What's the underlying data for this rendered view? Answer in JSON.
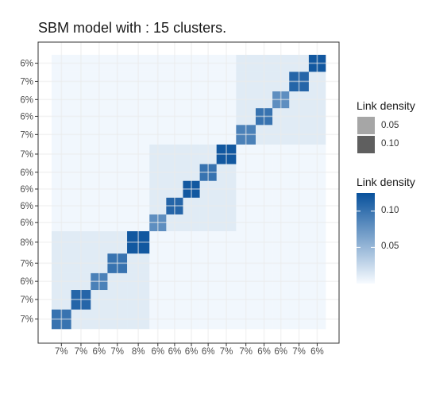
{
  "title": "SBM model with : 15 clusters.",
  "chart_data": {
    "type": "heatmap",
    "title": "SBM model with : 15 clusters.",
    "row_labels_top_to_bottom": [
      "6%",
      "7%",
      "6%",
      "6%",
      "7%",
      "7%",
      "6%",
      "6%",
      "6%",
      "6%",
      "8%",
      "7%",
      "6%",
      "7%",
      "7%"
    ],
    "col_labels_left_to_right": [
      "7%",
      "7%",
      "6%",
      "7%",
      "8%",
      "6%",
      "6%",
      "6%",
      "6%",
      "7%",
      "7%",
      "6%",
      "6%",
      "7%",
      "6%"
    ],
    "cluster_proportions": [
      0.07,
      0.07,
      0.06,
      0.07,
      0.08,
      0.06,
      0.06,
      0.06,
      0.06,
      0.07,
      0.07,
      0.06,
      0.06,
      0.07,
      0.06
    ],
    "diagonal_link_density": [
      0.1,
      0.11,
      0.09,
      0.1,
      0.12,
      0.08,
      0.11,
      0.12,
      0.1,
      0.12,
      0.09,
      0.1,
      0.08,
      0.11,
      0.12
    ],
    "within_group_link_density": 0.012,
    "background_link_density": 0.003,
    "groups_of_clusters": [
      [
        1,
        5
      ],
      [
        6,
        10
      ],
      [
        11,
        15
      ]
    ],
    "grid": true,
    "legend_size": {
      "title": "Link density",
      "entries": [
        {
          "label": "0.05",
          "color": "#a6a6a6"
        },
        {
          "label": "0.10",
          "color": "#5f5f5f"
        }
      ]
    },
    "legend_color": {
      "title": "Link density",
      "ticks": [
        "0.10",
        "0.05"
      ],
      "tick_values": [
        0.1,
        0.05
      ],
      "range": [
        0,
        0.125
      ],
      "low_color": "#f7fbff",
      "high_color": "#08519c"
    },
    "legend_placement": "right"
  },
  "colors": {
    "panel_border": "#333333",
    "grid": "#ebebeb",
    "axis_text": "#4d4d4d"
  }
}
